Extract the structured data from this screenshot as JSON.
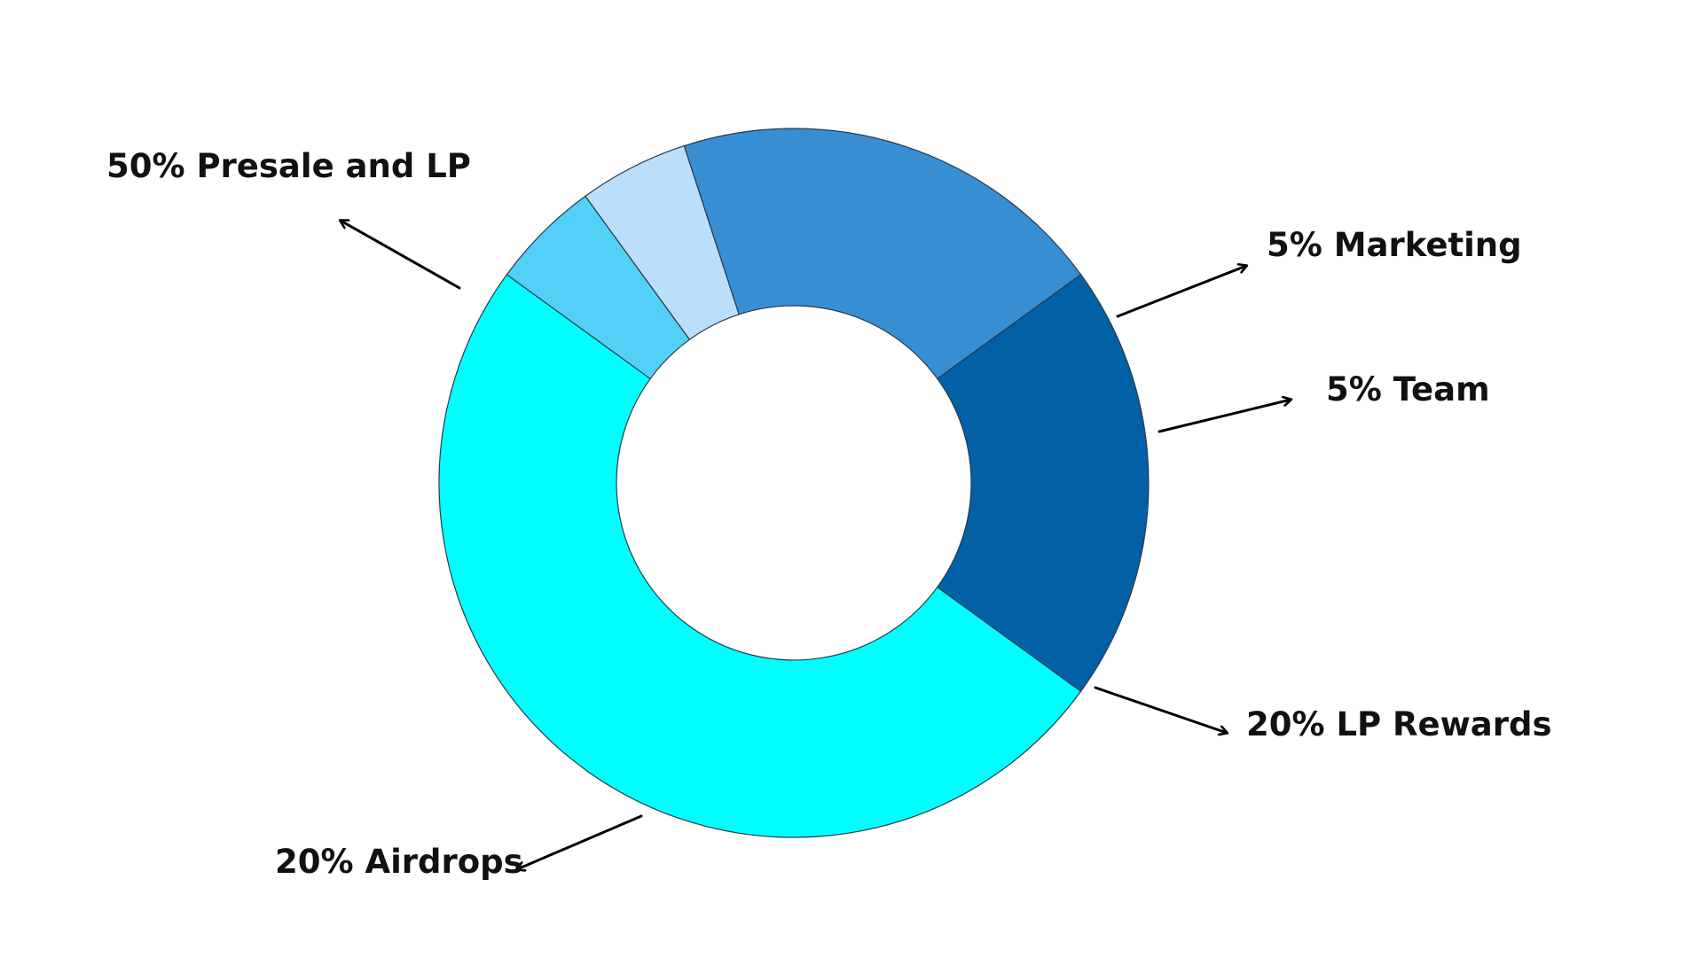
{
  "chart_data": {
    "type": "pie",
    "donut": true,
    "slices": [
      {
        "label": "50% Presale and LP",
        "value": 50,
        "color": "#00FFFF"
      },
      {
        "label": "5% Marketing",
        "value": 5,
        "color": "#52D0F8"
      },
      {
        "label": "5% Team",
        "value": 5,
        "color": "#BBDFFA"
      },
      {
        "label": "20% LP Rewards",
        "value": 20,
        "color": "#378ED3"
      },
      {
        "label": "20% Airdrops",
        "value": 20,
        "color": "#0260A7"
      }
    ],
    "title": "",
    "legend": "none"
  }
}
